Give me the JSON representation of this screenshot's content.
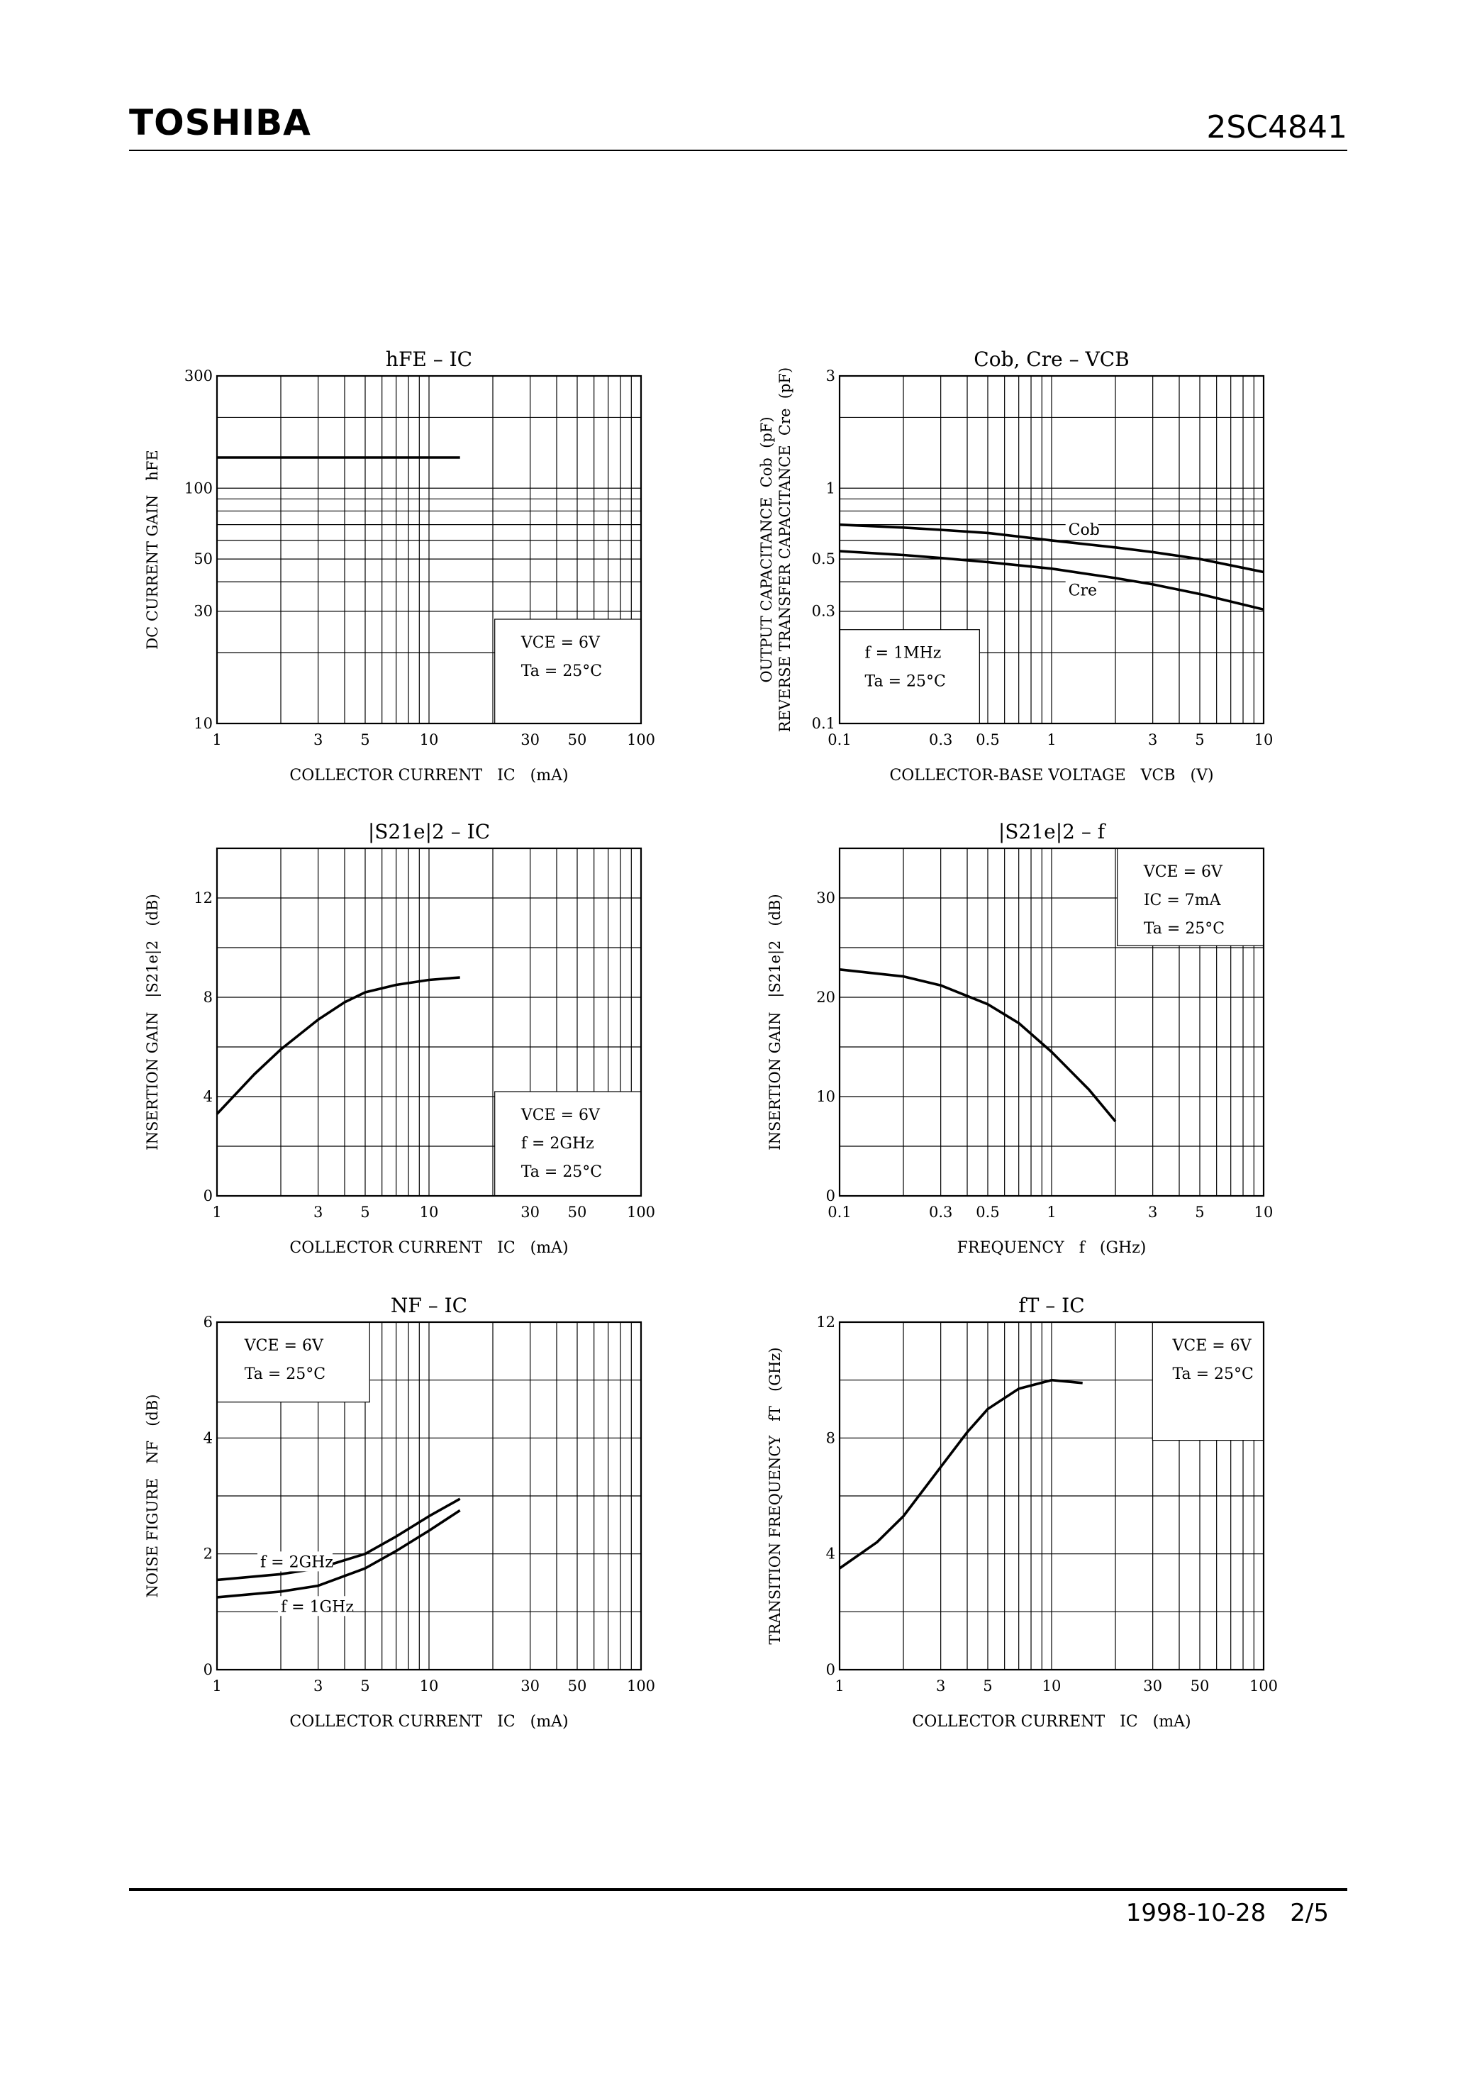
{
  "header": {
    "brand": "TOSHIBA",
    "part_number": "2SC4841"
  },
  "footer": {
    "date": "1998-10-28",
    "page": "2/5"
  },
  "chart_data": [
    {
      "type": "line",
      "title": "hFE – IC",
      "xlabel": "COLLECTOR CURRENT   IC   (mA)",
      "ylabel": "DC CURRENT GAIN   hFE",
      "xscale": "log",
      "yscale": "log",
      "xlim": [
        1,
        100
      ],
      "ylim": [
        10,
        300
      ],
      "xticks": [
        1,
        3,
        5,
        10,
        30,
        50,
        100
      ],
      "yticks": [
        10,
        30,
        50,
        100,
        300
      ],
      "conditions": [
        "VCE = 6V",
        "Ta = 25°C"
      ],
      "series": [
        {
          "x": [
            1,
            2,
            3,
            5,
            7,
            10,
            14
          ],
          "y": [
            135,
            135,
            135,
            135,
            135,
            135,
            135
          ]
        }
      ]
    },
    {
      "type": "line",
      "title": "Cob, Cre – VCB",
      "xlabel": "COLLECTOR-BASE VOLTAGE   VCB   (V)",
      "ylabel": "OUTPUT CAPACITANCE  Cob  (pF)",
      "ylabel2": "REVERSE TRANSFER CAPACITANCE  Cre  (pF)",
      "xscale": "log",
      "yscale": "log",
      "xlim": [
        0.1,
        10
      ],
      "ylim": [
        0.1,
        3
      ],
      "xticks": [
        0.1,
        0.3,
        0.5,
        1,
        3,
        5,
        10
      ],
      "yticks": [
        0.1,
        0.3,
        0.5,
        1,
        3
      ],
      "conditions": [
        "f = 1MHz",
        "Ta = 25°C"
      ],
      "series": [
        {
          "name": "Cob",
          "x": [
            0.1,
            0.2,
            0.3,
            0.5,
            1,
            2,
            3,
            5,
            10
          ],
          "y": [
            0.7,
            0.68,
            0.665,
            0.645,
            0.6,
            0.56,
            0.535,
            0.5,
            0.44
          ]
        },
        {
          "name": "Cre",
          "x": [
            0.1,
            0.2,
            0.3,
            0.5,
            1,
            2,
            3,
            5,
            10
          ],
          "y": [
            0.54,
            0.52,
            0.505,
            0.485,
            0.455,
            0.415,
            0.39,
            0.355,
            0.305
          ]
        }
      ]
    },
    {
      "type": "line",
      "title": "|S21e|2 – IC",
      "xlabel": "COLLECTOR CURRENT   IC   (mA)",
      "ylabel": "INSERTION GAIN   |S21e|2   (dB)",
      "xscale": "log",
      "yscale": "linear",
      "xlim": [
        1,
        100
      ],
      "ylim": [
        0,
        14
      ],
      "xticks": [
        1,
        3,
        5,
        10,
        30,
        50,
        100
      ],
      "yticks": [
        0,
        4,
        8,
        12
      ],
      "conditions": [
        "VCE = 6V",
        "f = 2GHz",
        "Ta = 25°C"
      ],
      "series": [
        {
          "x": [
            1,
            1.5,
            2,
            3,
            4,
            5,
            7,
            10,
            14
          ],
          "y": [
            3.3,
            4.9,
            5.9,
            7.1,
            7.8,
            8.2,
            8.5,
            8.7,
            8.8
          ]
        }
      ]
    },
    {
      "type": "line",
      "title": "|S21e|2 – f",
      "xlabel": "FREQUENCY   f   (GHz)",
      "ylabel": "INSERTION GAIN   |S21e|2   (dB)",
      "xscale": "log",
      "yscale": "linear",
      "xlim": [
        0.1,
        10
      ],
      "ylim": [
        0,
        35
      ],
      "xticks": [
        0.1,
        0.3,
        0.5,
        1,
        3,
        5,
        10
      ],
      "yticks": [
        0,
        10,
        20,
        30
      ],
      "conditions": [
        "VCE = 6V",
        "IC = 7mA",
        "Ta = 25°C"
      ],
      "series": [
        {
          "x": [
            0.1,
            0.2,
            0.3,
            0.5,
            0.7,
            1,
            1.5,
            2
          ],
          "y": [
            22.8,
            22.1,
            21.2,
            19.3,
            17.4,
            14.5,
            10.7,
            7.5
          ]
        }
      ]
    },
    {
      "type": "line",
      "title": "NF – IC",
      "xlabel": "COLLECTOR CURRENT   IC   (mA)",
      "ylabel": "NOISE FIGURE   NF   (dB)",
      "xscale": "log",
      "yscale": "linear",
      "xlim": [
        1,
        100
      ],
      "ylim": [
        0,
        6
      ],
      "xticks": [
        1,
        3,
        5,
        10,
        30,
        50,
        100
      ],
      "yticks": [
        0,
        2,
        4,
        6
      ],
      "conditions": [
        "VCE = 6V",
        "Ta = 25°C"
      ],
      "series": [
        {
          "name": "f = 2GHz",
          "x": [
            1,
            2,
            3,
            5,
            7,
            10,
            14
          ],
          "y": [
            1.55,
            1.65,
            1.75,
            2.0,
            2.3,
            2.65,
            2.95
          ]
        },
        {
          "name": "f = 1GHz",
          "x": [
            1,
            2,
            3,
            5,
            7,
            10,
            14
          ],
          "y": [
            1.25,
            1.35,
            1.45,
            1.75,
            2.05,
            2.4,
            2.75
          ]
        }
      ]
    },
    {
      "type": "line",
      "title": "fT – IC",
      "xlabel": "COLLECTOR CURRENT   IC   (mA)",
      "ylabel": "TRANSITION FREQUENCY   fT   (GHz)",
      "xscale": "log",
      "yscale": "linear",
      "xlim": [
        1,
        100
      ],
      "ylim": [
        0,
        12
      ],
      "xticks": [
        1,
        3,
        5,
        10,
        30,
        50,
        100
      ],
      "yticks": [
        0,
        4,
        8,
        12
      ],
      "conditions": [
        "VCE = 6V",
        "Ta = 25°C"
      ],
      "series": [
        {
          "x": [
            1,
            1.5,
            2,
            3,
            4,
            5,
            7,
            10,
            14
          ],
          "y": [
            3.5,
            4.4,
            5.3,
            7.0,
            8.2,
            9.0,
            9.7,
            10.0,
            9.9
          ]
        }
      ]
    }
  ]
}
